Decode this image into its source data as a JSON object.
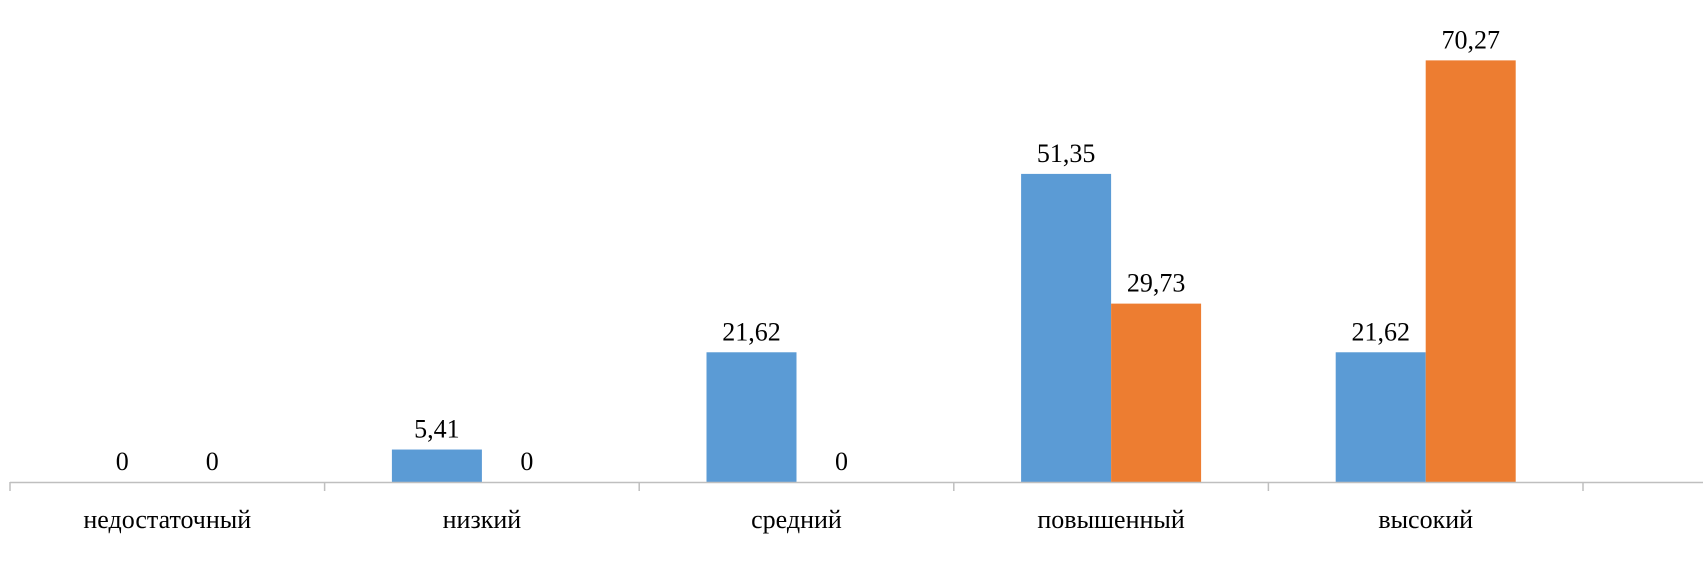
{
  "chart_data": {
    "type": "bar",
    "categories": [
      "недостаточный",
      "низкий",
      "средний",
      "повышенный",
      "высокий"
    ],
    "series": [
      {
        "values": [
          0,
          5.41,
          21.62,
          51.35,
          21.62
        ],
        "labels": [
          "0",
          "5,41",
          "21,62",
          "51,35",
          "21,62"
        ],
        "color": "#5b9bd5"
      },
      {
        "values": [
          0,
          0,
          0,
          29.73,
          70.27
        ],
        "labels": [
          "0",
          "0",
          "0",
          "29,73",
          "70,27"
        ],
        "color": "#ed7d31"
      }
    ],
    "ylim": [
      0,
      80
    ],
    "grid": false,
    "axis_color": "#bfbfbf"
  }
}
